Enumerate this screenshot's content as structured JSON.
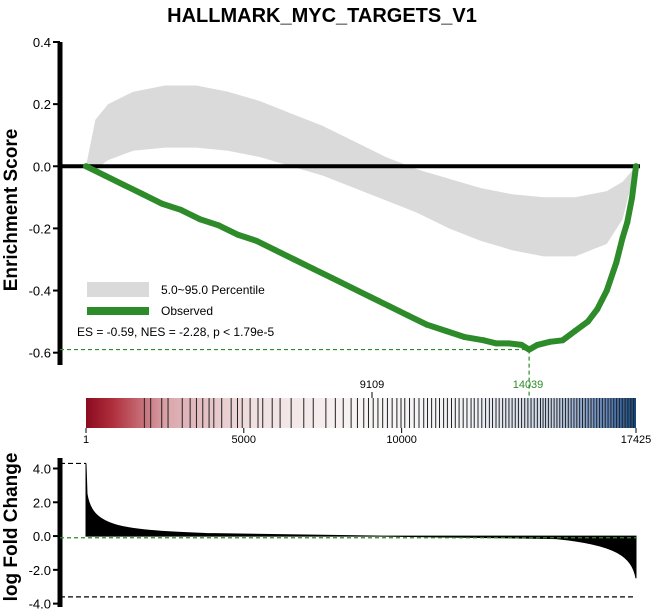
{
  "chart_data": {
    "type": "line",
    "title": "HALLMARK_MYC_TARGETS_V1",
    "top_panel": {
      "ylabel": "Enrichment Score",
      "ylim": [
        -0.63,
        0.4
      ],
      "yticks": [
        "0.4",
        "0.2",
        "0.0",
        "-0.2",
        "-0.4",
        "-0.6"
      ],
      "ytick_values": [
        0.4,
        0.2,
        0.0,
        -0.2,
        -0.4,
        -0.6
      ],
      "xlim": [
        1,
        17425
      ],
      "observed": {
        "name": "Observed",
        "color": "#2e8b2a",
        "x": [
          1,
          600,
          1200,
          1800,
          2400,
          3000,
          3600,
          4200,
          4800,
          5400,
          6000,
          6600,
          7200,
          7800,
          8400,
          9000,
          9600,
          10200,
          10800,
          11400,
          12000,
          12600,
          13000,
          13400,
          13800,
          14039,
          14300,
          14700,
          15100,
          15500,
          15900,
          16200,
          16500,
          16800,
          17000,
          17150,
          17300,
          17425
        ],
        "y": [
          0.0,
          -0.03,
          -0.06,
          -0.09,
          -0.12,
          -0.14,
          -0.17,
          -0.19,
          -0.22,
          -0.24,
          -0.27,
          -0.3,
          -0.33,
          -0.36,
          -0.39,
          -0.42,
          -0.45,
          -0.48,
          -0.51,
          -0.53,
          -0.55,
          -0.56,
          -0.57,
          -0.57,
          -0.575,
          -0.59,
          -0.575,
          -0.565,
          -0.56,
          -0.53,
          -0.5,
          -0.46,
          -0.4,
          -0.31,
          -0.23,
          -0.18,
          -0.1,
          0.0
        ]
      },
      "percentile_band": {
        "name": "5.0~95.0 Percentile",
        "color": "#d9d9d9",
        "x": [
          1,
          300,
          700,
          1500,
          2500,
          3500,
          4500,
          5500,
          6500,
          7500,
          8500,
          9500,
          10500,
          11500,
          12500,
          13500,
          14500,
          15500,
          16500,
          17000,
          17425
        ],
        "upper": [
          0.0,
          0.15,
          0.2,
          0.24,
          0.26,
          0.26,
          0.24,
          0.21,
          0.17,
          0.13,
          0.08,
          0.03,
          -0.01,
          -0.04,
          -0.07,
          -0.09,
          -0.1,
          -0.1,
          -0.08,
          -0.05,
          0.0
        ],
        "lower": [
          0.0,
          -0.01,
          0.02,
          0.05,
          0.06,
          0.06,
          0.05,
          0.03,
          0.0,
          -0.03,
          -0.07,
          -0.11,
          -0.15,
          -0.2,
          -0.24,
          -0.27,
          -0.29,
          -0.29,
          -0.25,
          -0.17,
          0.0
        ]
      },
      "leading_edge_y": -0.59,
      "peak_rank": 14039
    },
    "stats_text": "ES = -0.59, NES = -2.28, p < 1.79e-5",
    "annotations": {
      "zero_crossing_rank": "9109",
      "peak_rank_label": "14039"
    },
    "rank_bar": {
      "xtick_labels": [
        "1",
        "5000",
        "10000",
        "17425"
      ],
      "xtick_values": [
        1,
        5000,
        10000,
        17425
      ],
      "hit_ranks": [
        1850,
        2050,
        2400,
        2600,
        3050,
        3300,
        3500,
        3700,
        3900,
        4050,
        4300,
        4600,
        4800,
        4950,
        5200,
        5450,
        5600,
        5900,
        6150,
        6500,
        6900,
        7200,
        7600,
        7900,
        8150,
        8400,
        8600,
        8800,
        8950,
        9100,
        9250,
        9400,
        9550,
        9700,
        9850,
        9980,
        10100,
        10250,
        10400,
        10550,
        10700,
        10820,
        10950,
        11080,
        11200,
        11330,
        11450,
        11580,
        11700,
        11820,
        11950,
        12070,
        12200,
        12300,
        12420,
        12540,
        12660,
        12780,
        12880,
        12990,
        13090,
        13200,
        13300,
        13400,
        13500,
        13600,
        13700,
        13800,
        13900,
        14000,
        14100,
        14200,
        14300,
        14400,
        14480,
        14560,
        14650,
        14740,
        14830,
        14920,
        15010,
        15100,
        15190,
        15280,
        15370,
        15460,
        15550,
        15640,
        15730,
        15820,
        15910,
        16000,
        16090,
        16180,
        16270,
        16360,
        16450,
        16540,
        16630,
        16720,
        16810,
        16900,
        16990,
        17080,
        17170,
        17260,
        17350
      ]
    },
    "bottom_panel": {
      "ylabel": "log Fold Change",
      "ylim": [
        -4.2,
        4.8
      ],
      "yticks": [
        "4.0",
        "2.0",
        "0.0",
        "-2.0",
        "-4.0"
      ],
      "ytick_values": [
        4.0,
        2.0,
        0.0,
        -2.0,
        -4.0
      ],
      "max_line": 4.3,
      "min_line": -3.6,
      "zero_line": -0.1
    },
    "legend": [
      {
        "label": "5.0~95.0 Percentile",
        "color": "#d9d9d9"
      },
      {
        "label": "Observed",
        "color": "#2e8b2a"
      }
    ]
  }
}
